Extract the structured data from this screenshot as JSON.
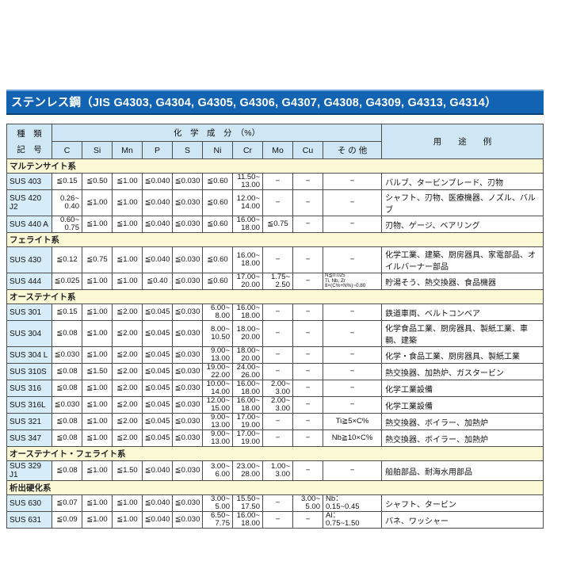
{
  "title": "ステンレス鋼（JIS G4303, G4304, G4305, G4306, G4307, G4308, G4309, G4313, G4314）",
  "colors": {
    "title_bar_bg": "#1263b2",
    "title_bar_top_edge": "#6fa3d9",
    "title_bar_bottom_edge": "#0a4179",
    "header_bg": "#cfe6f4",
    "grade_cell_bg": "#d6ecf8",
    "section_row_bg": "#fbf8d6",
    "border": "#4d4d4d",
    "title_text": "#ffffff"
  },
  "table": {
    "header": {
      "type_line1": "種　類",
      "type_line2": "記　号",
      "composition_label": "化　学　成　分　（%）",
      "usage_label": "用　　途　　例",
      "elements": [
        "C",
        "Si",
        "Mn",
        "P",
        "S",
        "Ni",
        "Cr",
        "Mo",
        "Cu",
        "そ の 他"
      ]
    },
    "sections": [
      {
        "name": "マルテンサイト系",
        "rows": [
          {
            "grade": "SUS 403",
            "comp": [
              "≦0.15",
              "≦0.50",
              "≦1.00",
              "≦0.040",
              "≦0.030",
              "≦0.60",
              "11.50~\n13.00",
              "−",
              "−",
              "−"
            ],
            "usage": "バルブ、タービンブレード、刃物"
          },
          {
            "grade": "SUS 420 J2",
            "comp": [
              "0.26~\n0.40",
              "≦1.00",
              "≦1.00",
              "≦0.040",
              "≦0.030",
              "≦0.60",
              "12.00~\n14.00",
              "−",
              "−",
              "−"
            ],
            "usage": "シャフト、刃物、医療機器、ノズル、バルブ"
          },
          {
            "grade": "SUS 440 A",
            "comp": [
              "0.60~\n0.75",
              "≦1.00",
              "≦1.00",
              "≦0.040",
              "≦0.030",
              "≦0.60",
              "16.00~\n18.00",
              "≦0.75",
              "−",
              "−"
            ],
            "usage": "刃物、ゲージ、ベアリング"
          }
        ]
      },
      {
        "name": "フェライト系",
        "rows": [
          {
            "grade": "SUS 430",
            "comp": [
              "≦0.12",
              "≦0.75",
              "≦1.00",
              "≦0.040",
              "≦0.030",
              "≦0.60",
              "16.00~\n18.00",
              "−",
              "−",
              "−"
            ],
            "usage": "化学工業、建築、厨房器具、家電部品、オイルバーナー部品"
          },
          {
            "grade": "SUS 444",
            "comp": [
              "≦0.025",
              "≦1.00",
              "≦1.00",
              "≦0.40",
              "≦0.030",
              "≦0.60",
              "17.00~\n20.00",
              "1.75~\n2.50",
              "−",
              "N≦0.025\nTi, Nb, Zr\n8×(C%+N%)~0.80"
            ],
            "usage": "貯湯そう、熱交換器、食品機器"
          }
        ]
      },
      {
        "name": "オーステナイト系",
        "rows": [
          {
            "grade": "SUS 301",
            "comp": [
              "≦0.15",
              "≦1.00",
              "≦2.00",
              "≦0.045",
              "≦0.030",
              "6.00~\n8.00",
              "16.00~\n18.00",
              "−",
              "−",
              "−"
            ],
            "usage": "鉄道車両、ベルトコンベア"
          },
          {
            "grade": "SUS 304",
            "comp": [
              "≦0.08",
              "≦1.00",
              "≦2.00",
              "≦0.045",
              "≦0.030",
              "8.00~\n10.50",
              "18.00~\n20.00",
              "−",
              "−",
              "−"
            ],
            "usage": "化学食品工業、厨房器具、製紙工業、車輌、建築"
          },
          {
            "grade": "SUS 304 L",
            "comp": [
              "≦0.030",
              "≦1.00",
              "≦2.00",
              "≦0.045",
              "≦0.030",
              "9.00~\n13.00",
              "18.00~\n20.00",
              "−",
              "−",
              "−"
            ],
            "usage": "化学・食品工業、厨房器具、製紙工業"
          },
          {
            "grade": "SUS 310S",
            "comp": [
              "≦0.08",
              "≦1.50",
              "≦2.00",
              "≦0.045",
              "≦0.030",
              "19.00~\n22.00",
              "24.00~\n26.00",
              "−",
              "−",
              "−"
            ],
            "usage": "熱交換器、加熱炉、ガスタービン"
          },
          {
            "grade": "SUS 316",
            "comp": [
              "≦0.08",
              "≦1.00",
              "≦2.00",
              "≦0.045",
              "≦0.030",
              "10.00~\n14.00",
              "16.00~\n18.00",
              "2.00~\n3.00",
              "−",
              "−"
            ],
            "usage": "化学工業設備"
          },
          {
            "grade": "SUS 316L",
            "comp": [
              "≦0.030",
              "≦1.00",
              "≦2.00",
              "≦0.045",
              "≦0.030",
              "12.00~\n15.00",
              "16.00~\n18.00",
              "2.00~\n3.00",
              "−",
              "−"
            ],
            "usage": "化学工業設備"
          },
          {
            "grade": "SUS 321",
            "comp": [
              "≦0.08",
              "≦1.00",
              "≦2.00",
              "≦0.045",
              "≦0.030",
              "9.00~\n13.00",
              "17.00~\n19.00",
              "−",
              "−",
              "Ti≧5×C%"
            ],
            "usage": "熱交換器、ボイラー、加熱炉"
          },
          {
            "grade": "SUS 347",
            "comp": [
              "≦0.08",
              "≦1.00",
              "≦2.00",
              "≦0.045",
              "≦0.030",
              "9.00~\n13.00",
              "17.00~\n19.00",
              "−",
              "−",
              "Nb≧10×C%"
            ],
            "usage": "熱交換器、ボイラー、加熱炉"
          }
        ]
      },
      {
        "name": "オーステナイト・フェライト系",
        "rows": [
          {
            "grade": "SUS 329 J1",
            "comp": [
              "≦0.08",
              "≦1.00",
              "≦1.50",
              "≦0.040",
              "≦0.030",
              "3.00~\n6.00",
              "23.00~\n28.00",
              "1.00~\n3.00",
              "−",
              "−"
            ],
            "usage": "船舶部品、耐海水用部品"
          }
        ]
      },
      {
        "name": "析出硬化系",
        "rows": [
          {
            "grade": "SUS 630",
            "comp": [
              "≦0.07",
              "≦1.00",
              "≦1.00",
              "≦0.040",
              "≦0.030",
              "3.00~\n5.00",
              "15.50~\n17.50",
              "−",
              "3.00~\n5.00",
              "Nb：\n0.15~0.45"
            ],
            "usage": "シャフト、タービン"
          },
          {
            "grade": "SUS 631",
            "comp": [
              "≦0.09",
              "≦1.00",
              "≦1.00",
              "≦0.040",
              "≦0.030",
              "6.50~\n7.75",
              "16.00~\n18.00",
              "−",
              "−",
              "Al：\n0.75~1.50"
            ],
            "usage": "バネ、ワッシャー"
          }
        ]
      }
    ]
  }
}
